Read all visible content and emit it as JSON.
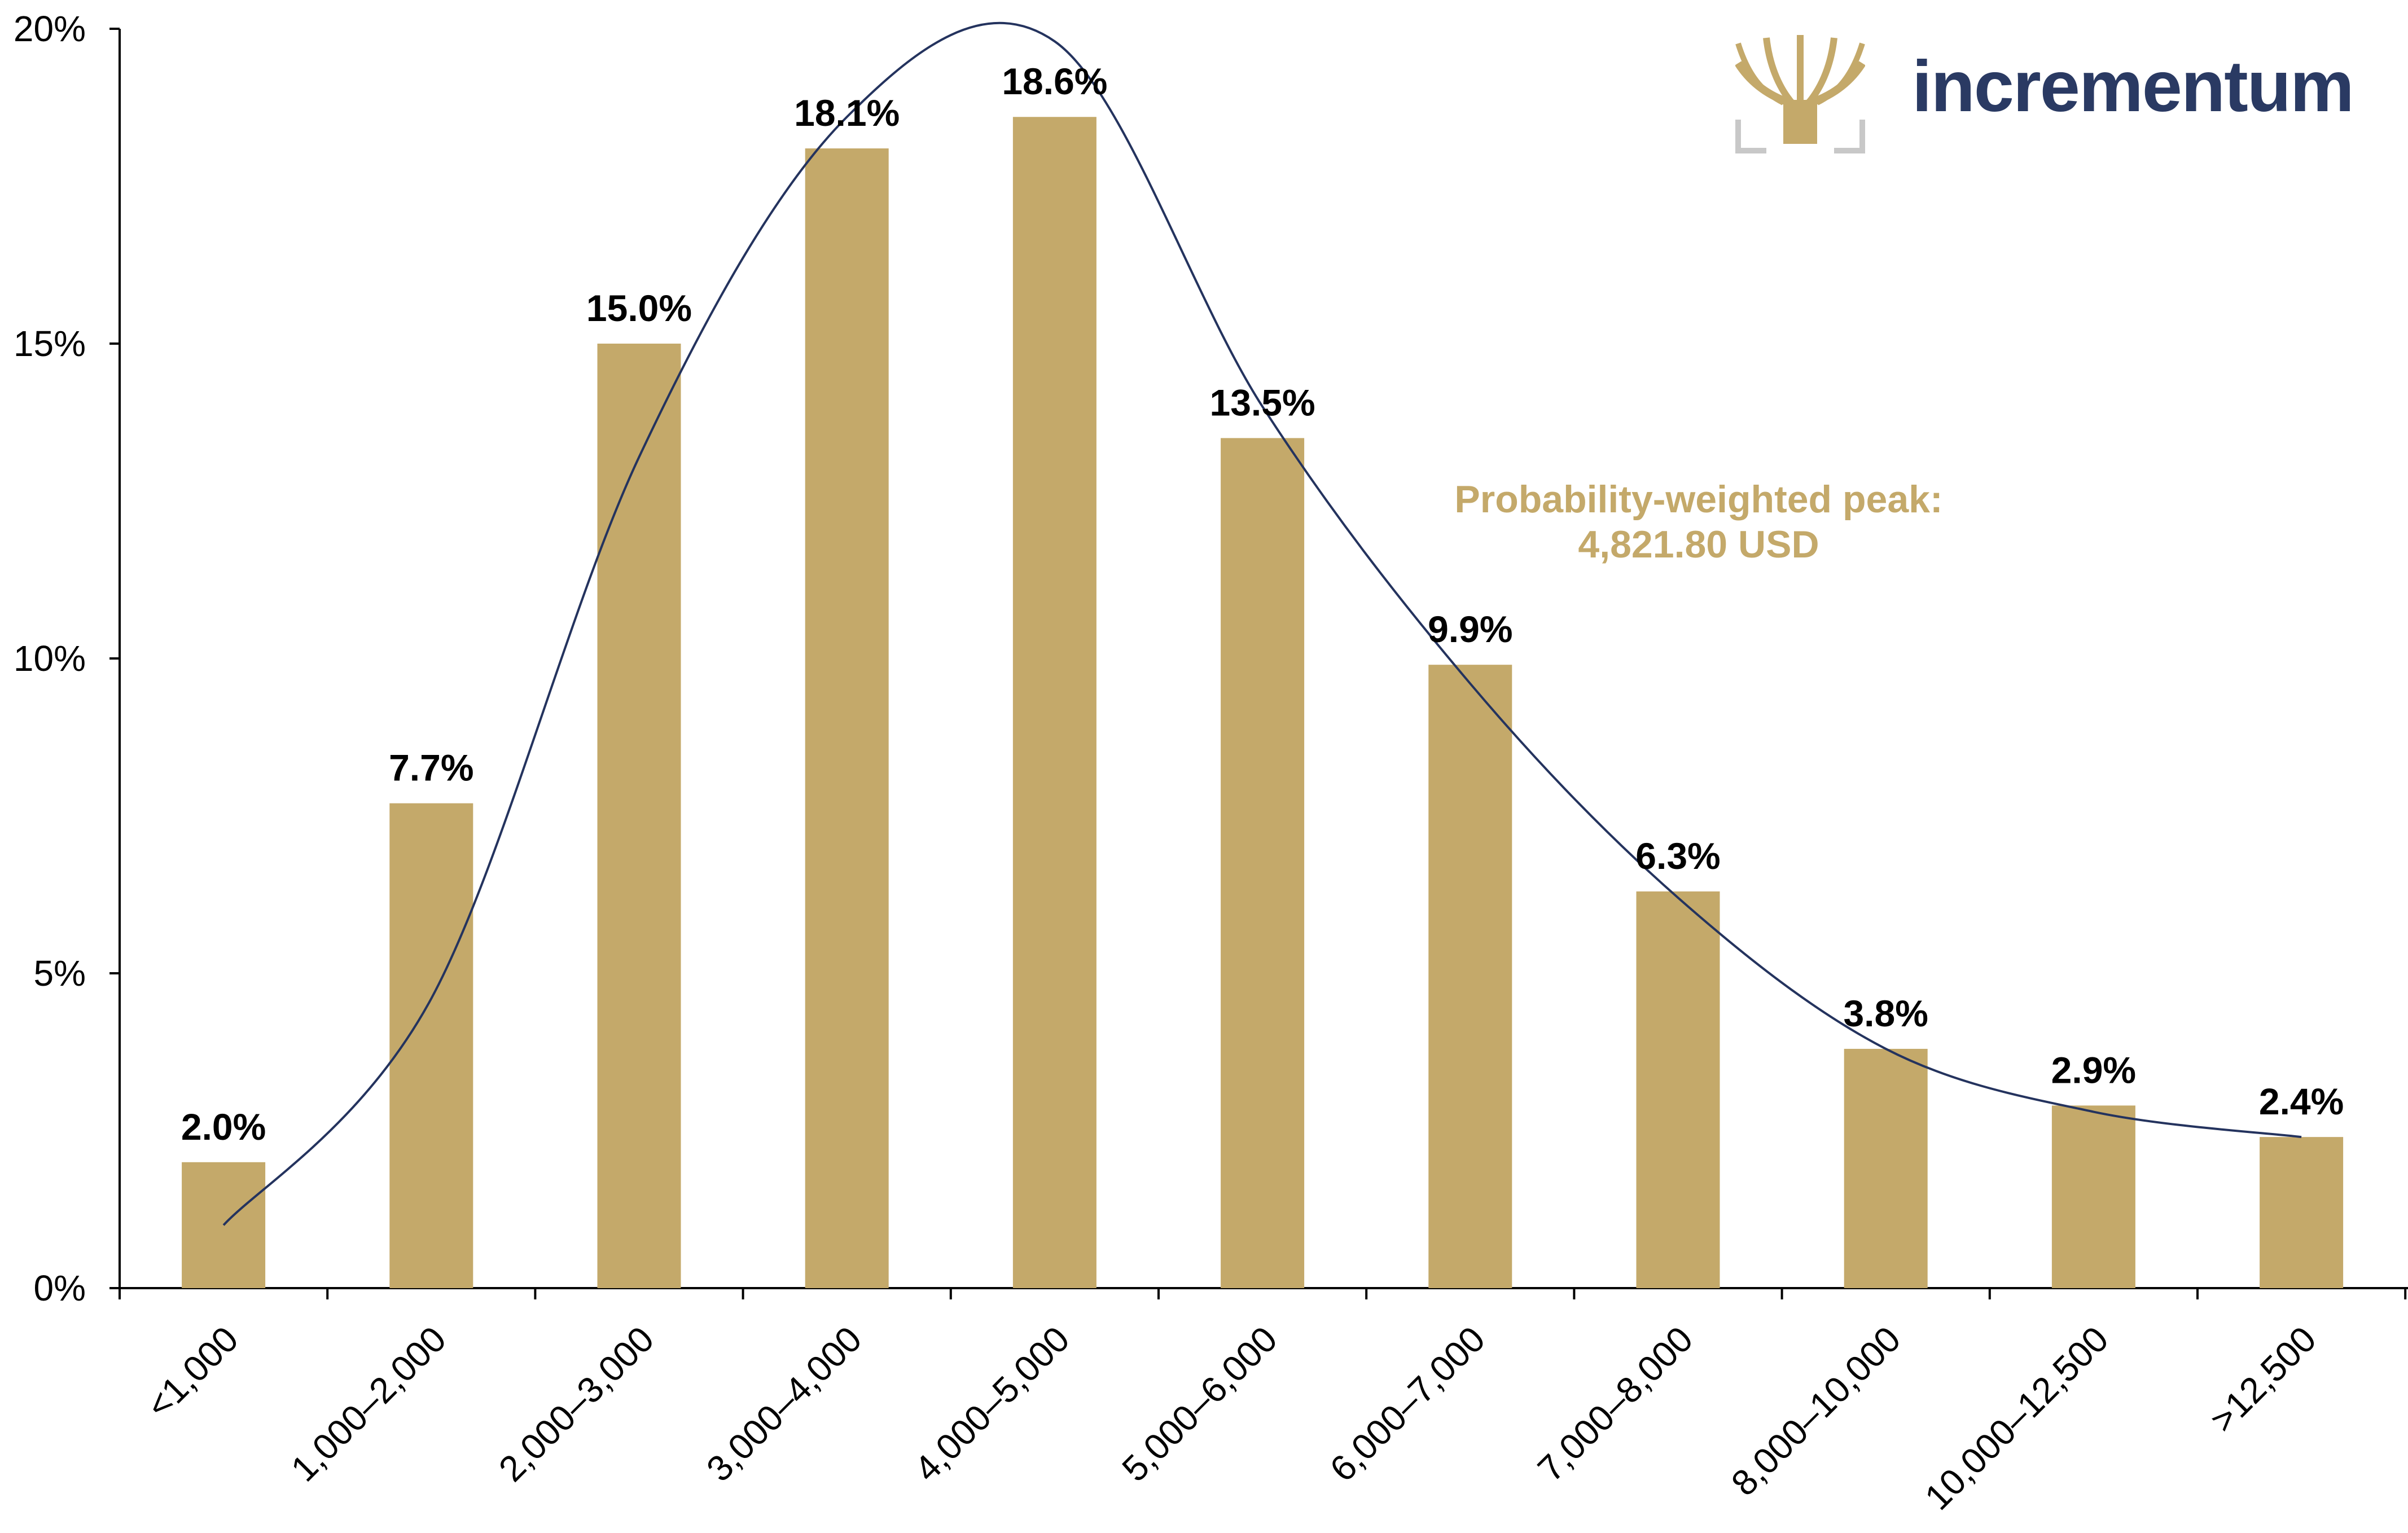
{
  "chart_data": {
    "type": "bar",
    "categories": [
      "<1,000",
      "1,000–2,000",
      "2,000–3,000",
      "3,000–4,000",
      "4,000–5,000",
      "5,000–6,000",
      "6,000–7,000",
      "7,000–8,000",
      "8,000–10,000",
      "10,000–12,500",
      ">12,500"
    ],
    "values": [
      2.0,
      7.7,
      15.0,
      18.1,
      18.6,
      13.5,
      9.9,
      6.3,
      3.8,
      2.9,
      2.4
    ],
    "data_labels": [
      "2.0%",
      "7.7%",
      "15.0%",
      "18.1%",
      "18.6%",
      "13.5%",
      "9.9%",
      "6.3%",
      "3.8%",
      "2.9%",
      "2.4%"
    ],
    "ylim": [
      0,
      20
    ],
    "yticks": [
      0,
      5,
      10,
      15,
      20
    ],
    "ytick_labels": [
      "0%",
      "5%",
      "10%",
      "15%",
      "20%"
    ],
    "grid": false,
    "bar_color": "#c4a96a",
    "curve_color": "#24335e",
    "curve": {
      "description": "smoothed probability density overlay",
      "points": [
        [
          0,
          1.0
        ],
        [
          1,
          4.6
        ],
        [
          2,
          13.2
        ],
        [
          3,
          18.6
        ],
        [
          4,
          19.8
        ],
        [
          5,
          14.0
        ],
        [
          6,
          9.6
        ],
        [
          7,
          6.2
        ],
        [
          8,
          3.8
        ],
        [
          9,
          2.8
        ],
        [
          10,
          2.4
        ]
      ]
    },
    "annotation": {
      "line1": "Probability-weighted peak:",
      "line2": "4,821.80 USD",
      "color": "#c4a96a"
    }
  },
  "logo": {
    "text": "incrementum",
    "icon": "tree-logo-icon",
    "text_color": "#2a3a63",
    "icon_color": "#c4a96a"
  }
}
